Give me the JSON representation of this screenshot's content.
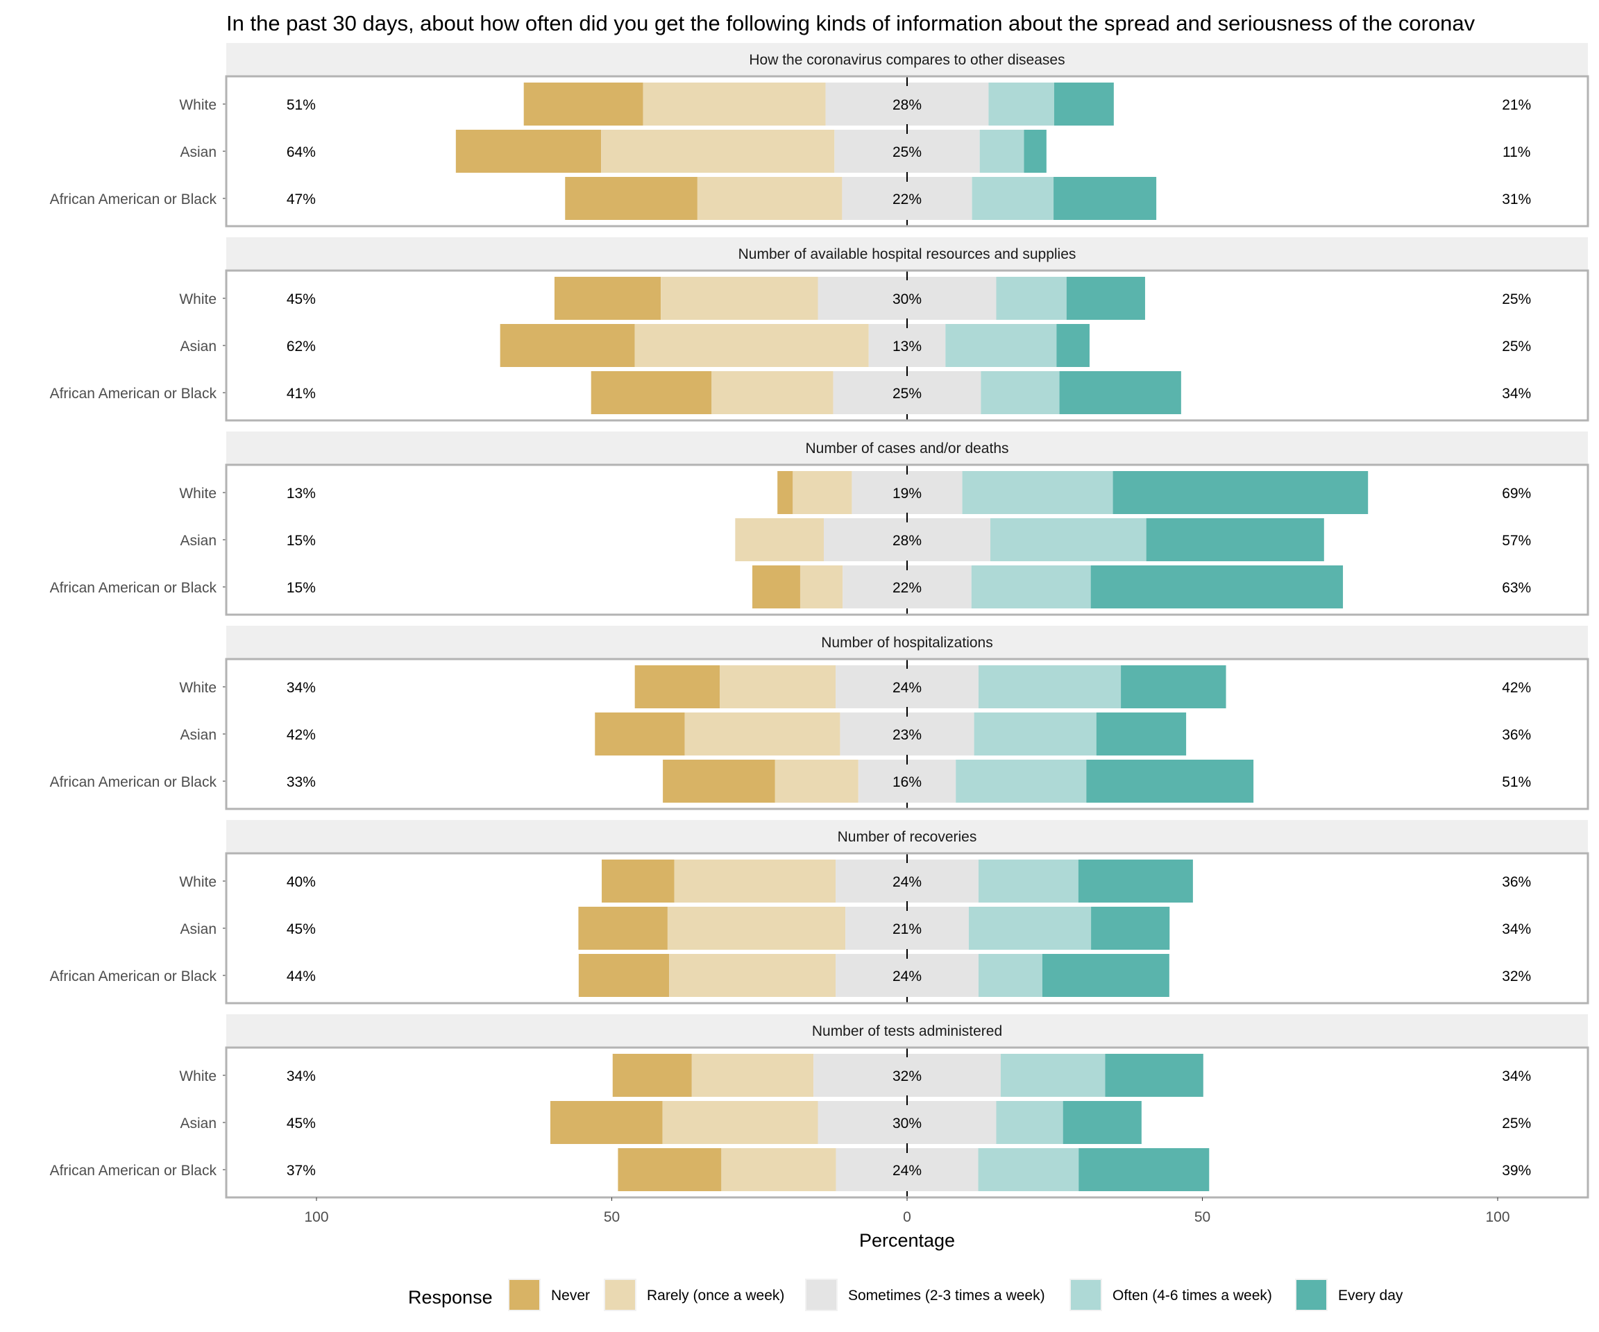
{
  "chart_data": {
    "type": "bar",
    "orientation": "horizontal-diverging-stacked",
    "title": "In the past 30 days, about how often did you get the following kinds of information about the spread and seriousness of the coronav",
    "xlabel": "Percentage",
    "ylabel": "",
    "xlim": [
      -100,
      100
    ],
    "x_ticks": [
      -100,
      -50,
      0,
      50,
      100
    ],
    "x_tick_labels": [
      "100",
      "50",
      "0",
      "50",
      "100"
    ],
    "grid": true,
    "legend": {
      "title": "Response",
      "position": "bottom",
      "entries": [
        "Never",
        "Rarely (once a week)",
        "Sometimes (2-3 times a week)",
        "Often (4-6 times a week)",
        "Every day"
      ]
    },
    "colors": {
      "Never": "#d8b365",
      "Rarely (once a week)": "#ead9b2",
      "Sometimes (2-3 times a week)": "#e4e4e4",
      "Often (4-6 times a week)": "#aed9d6",
      "Every day": "#5ab4ac"
    },
    "categories": [
      "White",
      "Asian",
      "African American or Black"
    ],
    "panels": [
      {
        "label": "How the coronavirus compares to other diseases",
        "rows": [
          {
            "group": "White",
            "values": [
              20.2,
              30.9,
              27.6,
              11.1,
              10.1
            ],
            "low_label": "51%",
            "neutral_label": "28%",
            "high_label": "21%"
          },
          {
            "group": "Asian",
            "values": [
              24.6,
              39.5,
              24.6,
              7.5,
              3.8
            ],
            "low_label": "64%",
            "neutral_label": "25%",
            "high_label": "11%"
          },
          {
            "group": "African American or Black",
            "values": [
              22.4,
              24.5,
              22.0,
              13.8,
              17.4
            ],
            "low_label": "47%",
            "neutral_label": "22%",
            "high_label": "31%"
          }
        ]
      },
      {
        "label": "Number of available hospital resources and supplies",
        "rows": [
          {
            "group": "White",
            "values": [
              18.0,
              26.6,
              30.2,
              11.9,
              13.3
            ],
            "low_label": "45%",
            "neutral_label": "30%",
            "high_label": "25%"
          },
          {
            "group": "Asian",
            "values": [
              22.8,
              39.6,
              13.0,
              18.8,
              5.6
            ],
            "low_label": "62%",
            "neutral_label": "13%",
            "high_label": "25%"
          },
          {
            "group": "African American or Black",
            "values": [
              20.4,
              20.6,
              25.0,
              13.3,
              20.6
            ],
            "low_label": "41%",
            "neutral_label": "25%",
            "high_label": "34%"
          }
        ]
      },
      {
        "label": "Number of cases and/or deaths",
        "rows": [
          {
            "group": "White",
            "values": [
              2.6,
              10.0,
              18.7,
              25.5,
              43.2
            ],
            "low_label": "13%",
            "neutral_label": "19%",
            "high_label": "69%"
          },
          {
            "group": "Asian",
            "values": [
              0.0,
              15.0,
              28.2,
              26.4,
              30.1
            ],
            "low_label": "15%",
            "neutral_label": "28%",
            "high_label": "57%"
          },
          {
            "group": "African American or Black",
            "values": [
              8.1,
              7.2,
              21.8,
              20.2,
              42.7
            ],
            "low_label": "15%",
            "neutral_label": "22%",
            "high_label": "63%"
          }
        ]
      },
      {
        "label": "Number of hospitalizations",
        "rows": [
          {
            "group": "White",
            "values": [
              14.4,
              19.6,
              24.2,
              24.1,
              17.8
            ],
            "low_label": "34%",
            "neutral_label": "24%",
            "high_label": "42%"
          },
          {
            "group": "Asian",
            "values": [
              15.2,
              26.3,
              22.7,
              20.7,
              15.2
            ],
            "low_label": "42%",
            "neutral_label": "23%",
            "high_label": "36%"
          },
          {
            "group": "African American or Black",
            "values": [
              19.0,
              14.1,
              16.5,
              22.1,
              28.3
            ],
            "low_label": "33%",
            "neutral_label": "16%",
            "high_label": "51%"
          }
        ]
      },
      {
        "label": "Number of recoveries",
        "rows": [
          {
            "group": "White",
            "values": [
              12.3,
              27.3,
              24.2,
              16.9,
              19.4
            ],
            "low_label": "40%",
            "neutral_label": "24%",
            "high_label": "36%"
          },
          {
            "group": "Asian",
            "values": [
              15.1,
              30.1,
              20.9,
              20.7,
              13.3
            ],
            "low_label": "45%",
            "neutral_label": "21%",
            "high_label": "34%"
          },
          {
            "group": "African American or Black",
            "values": [
              15.3,
              28.2,
              24.2,
              10.8,
              21.5
            ],
            "low_label": "44%",
            "neutral_label": "24%",
            "high_label": "32%"
          }
        ]
      },
      {
        "label": "Number of tests administered",
        "rows": [
          {
            "group": "White",
            "values": [
              13.4,
              20.6,
              31.7,
              17.7,
              16.6
            ],
            "low_label": "34%",
            "neutral_label": "32%",
            "high_label": "34%"
          },
          {
            "group": "Asian",
            "values": [
              19.0,
              26.3,
              30.2,
              11.3,
              13.3
            ],
            "low_label": "45%",
            "neutral_label": "30%",
            "high_label": "25%"
          },
          {
            "group": "African American or Black",
            "values": [
              17.5,
              19.4,
              24.1,
              17.0,
              22.1
            ],
            "low_label": "37%",
            "neutral_label": "24%",
            "high_label": "39%"
          }
        ]
      }
    ]
  }
}
